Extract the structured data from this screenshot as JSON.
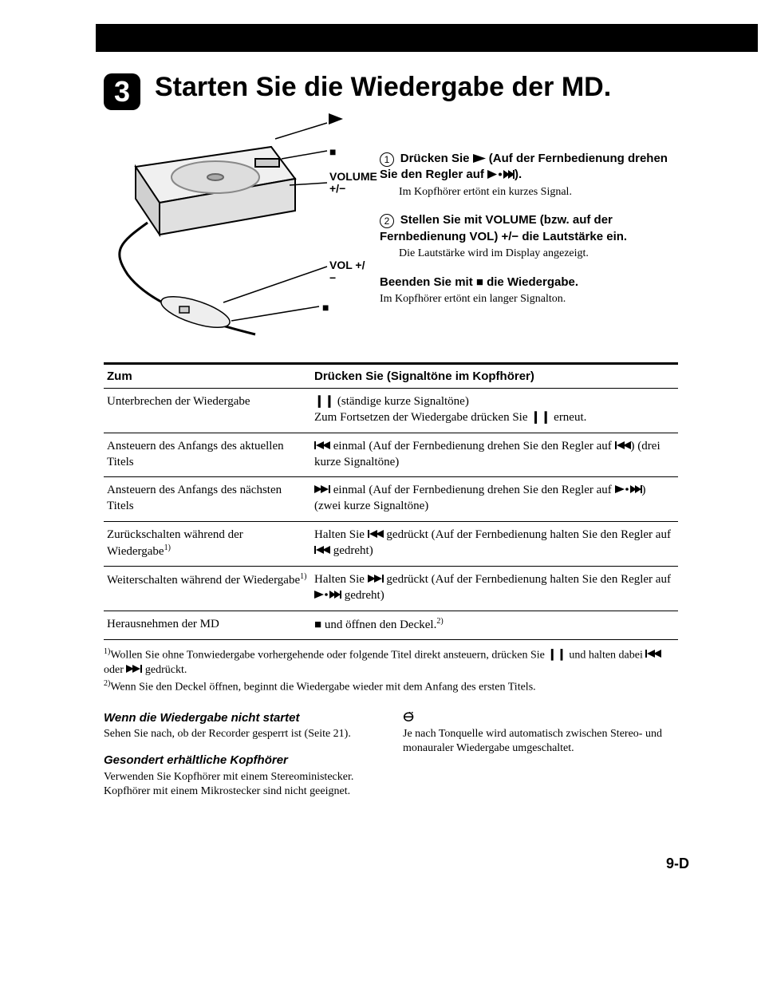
{
  "step_number": "3",
  "title": "Starten Sie die Wiedergabe der MD.",
  "diagram": {
    "labels": {
      "play": "▶",
      "stop": "■",
      "volume": "VOLUME\n+/−",
      "vol": "VOL +/−",
      "pause": "■"
    }
  },
  "instructions": {
    "step1_prefix": "Drücken Sie ",
    "step1_mid": " (Auf der Fernbedienung drehen Sie den Regler auf ",
    "step1_suffix": ").",
    "step1_sub": "Im Kopfhörer ertönt ein kurzes Signal.",
    "step2_text": "Stellen Sie mit VOLUME (bzw. auf der Fernbedienung VOL) +/− die Lautstärke ein.",
    "step2_sub": "Die Lautstärke wird im Display angezeigt.",
    "stop_prefix": "Beenden Sie mit ",
    "stop_suffix": " die Wiedergabe.",
    "stop_sub": "Im Kopfhörer ertönt ein langer Signalton."
  },
  "table": {
    "header_left": "Zum",
    "header_right": "Drücken Sie (Signaltöne im Kopfhörer)",
    "rows": [
      {
        "left": "Unterbrechen der Wiedergabe",
        "right_pre": "",
        "right_sym": "pause",
        "right_post": " (ständige kurze Signaltöne)\nZum Fortsetzen der Wiedergabe drücken Sie ",
        "right_sym2": "pause",
        "right_post2": " erneut."
      },
      {
        "left": "Ansteuern des Anfangs des aktuellen Titels",
        "right_sym": "prev",
        "right_post": " einmal (Auf der Fernbedienung drehen Sie den Regler auf ",
        "right_sym2": "prev",
        "right_post2": ") (drei kurze Signaltöne)"
      },
      {
        "left": "Ansteuern des Anfangs des nächsten Titels",
        "right_sym": "next",
        "right_post": " einmal (Auf der Fernbedienung drehen Sie den Regler auf ",
        "right_sym2": "play_next",
        "right_post2": ") (zwei kurze Signaltöne)"
      },
      {
        "left": "Zurückschalten während der Wiedergabe",
        "left_sup": "1)",
        "right_pre": "Halten Sie ",
        "right_sym": "prev",
        "right_post": " gedrückt (Auf der Fernbedienung halten Sie den Regler auf ",
        "right_sym2": "prev",
        "right_post2": " gedreht)"
      },
      {
        "left": "Weiterschalten während der Wiedergabe",
        "left_sup": "1)",
        "right_pre": "Halten Sie ",
        "right_sym": "next",
        "right_post": " gedrückt (Auf der Fernbedienung halten Sie den Regler auf ",
        "right_sym2": "play_next",
        "right_post2": " gedreht)"
      },
      {
        "left": "Herausnehmen der MD",
        "right_sym": "stop",
        "right_post": " und öffnen den Deckel.",
        "right_sup": "2)"
      }
    ]
  },
  "footnotes": {
    "fn1_pre": "Wollen Sie ohne Tonwiedergabe vorhergehende oder folgende Titel direkt ansteuern, drücken Sie ",
    "fn1_mid": " und halten dabei ",
    "fn1_or": " oder ",
    "fn1_post": " gedrückt.",
    "fn2": "Wenn Sie den Deckel öffnen, beginnt die Wiedergabe wieder mit dem Anfang des ersten Titels."
  },
  "bottom": {
    "col1_h1": "Wenn die Wiedergabe nicht startet",
    "col1_p1": "Sehen Sie nach, ob der Recorder gesperrt ist (Seite 21).",
    "col1_h2": "Gesondert erhältliche Kopfhörer",
    "col1_p2": "Verwenden Sie Kopfhörer mit einem Stereoministecker. Kopfhörer mit einem Mikrostecker sind nicht geeignet.",
    "col2_tip": "Je nach Tonquelle wird automatisch zwischen Stereo- und monauraler Wiedergabe umgeschaltet."
  },
  "page": "9-D"
}
